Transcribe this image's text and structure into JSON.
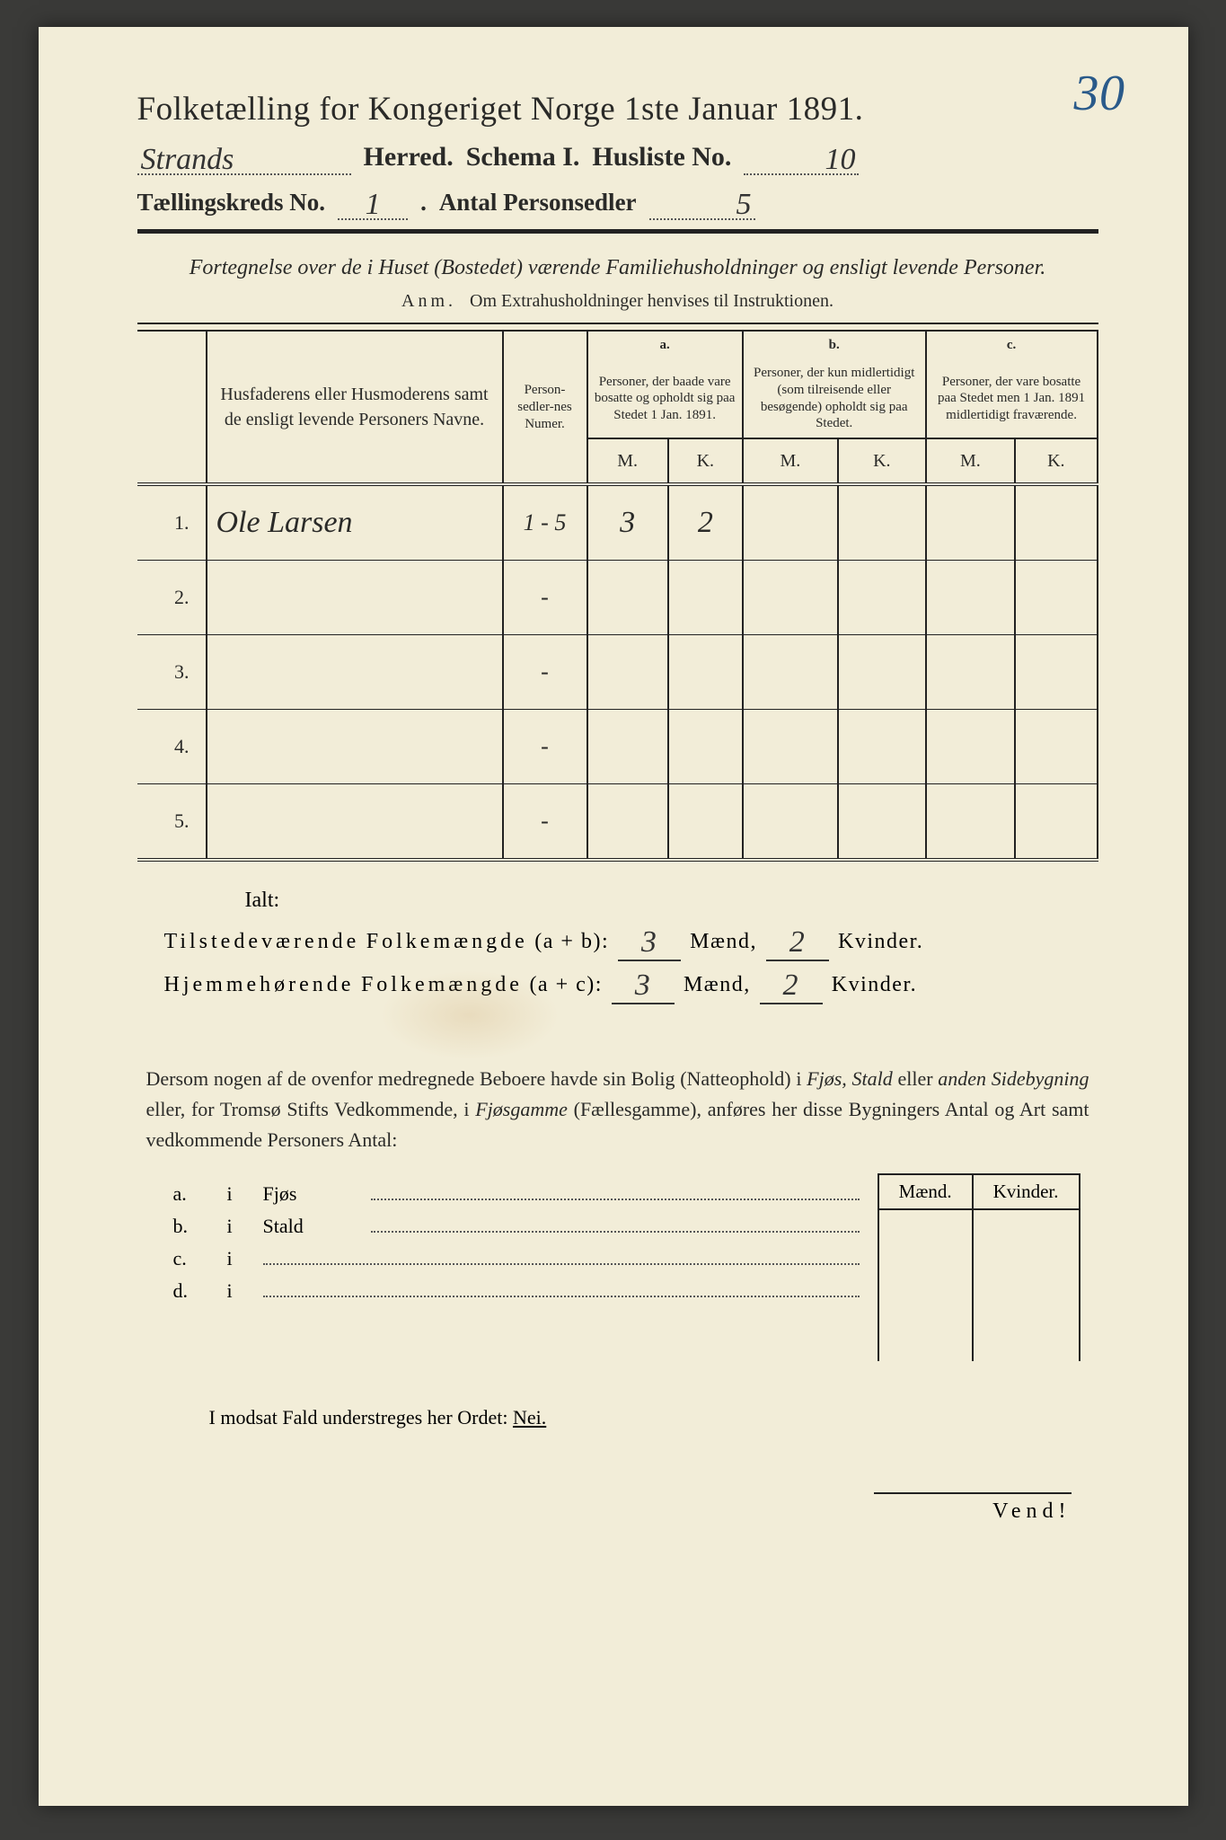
{
  "colors": {
    "paper": "#f2edd8",
    "ink": "#2a2a28",
    "pen_blue": "#2a5a8a",
    "background": "#3a3a38",
    "rule": "#222222",
    "dotted": "#555555"
  },
  "title": "Folketælling for Kongeriget Norge 1ste Januar 1891.",
  "page_annotation": "30",
  "line2": {
    "herred_value": "Strands",
    "herred_label": "Herred.",
    "schema_label": "Schema I.",
    "husliste_label": "Husliste No.",
    "husliste_value": "10"
  },
  "line3": {
    "kreds_label": "Tællingskreds No.",
    "kreds_value": "1",
    "antal_label": "Antal Personsedler",
    "antal_value": "5"
  },
  "subtitle": "Fortegnelse over de i Huset (Bostedet) værende Familiehusholdninger og ensligt levende Personer.",
  "anm_label": "Anm.",
  "anm_text": "Om Extrahusholdninger henvises til Instruktionen.",
  "table": {
    "col_names": "Husfaderens eller Husmoderens samt de ensligt levende Personers Navne.",
    "col_numer": "Person-sedler-nes Numer.",
    "col_a_head": "a.",
    "col_a": "Personer, der baade vare bosatte og opholdt sig paa Stedet 1 Jan. 1891.",
    "col_b_head": "b.",
    "col_b": "Personer, der kun midlertidigt (som tilreisende eller besøgende) opholdt sig paa Stedet.",
    "col_c_head": "c.",
    "col_c": "Personer, der vare bosatte paa Stedet men 1 Jan. 1891 midlertidigt fraværende.",
    "mk_m": "M.",
    "mk_k": "K.",
    "rows": [
      {
        "num": "1.",
        "name": "Ole Larsen",
        "sedler": "1 - 5",
        "a_m": "3",
        "a_k": "2",
        "b_m": "",
        "b_k": "",
        "c_m": "",
        "c_k": ""
      },
      {
        "num": "2.",
        "name": "",
        "sedler": "-",
        "a_m": "",
        "a_k": "",
        "b_m": "",
        "b_k": "",
        "c_m": "",
        "c_k": ""
      },
      {
        "num": "3.",
        "name": "",
        "sedler": "-",
        "a_m": "",
        "a_k": "",
        "b_m": "",
        "b_k": "",
        "c_m": "",
        "c_k": ""
      },
      {
        "num": "4.",
        "name": "",
        "sedler": "-",
        "a_m": "",
        "a_k": "",
        "b_m": "",
        "b_k": "",
        "c_m": "",
        "c_k": ""
      },
      {
        "num": "5.",
        "name": "",
        "sedler": "-",
        "a_m": "",
        "a_k": "",
        "b_m": "",
        "b_k": "",
        "c_m": "",
        "c_k": ""
      }
    ]
  },
  "ialt": "Ialt:",
  "sum1": {
    "label": "Tilstedeværende Folkemængde (a + b):",
    "m": "3",
    "m_label": "Mænd,",
    "k": "2",
    "k_label": "Kvinder."
  },
  "sum2": {
    "label": "Hjemmehørende Folkemængde (a + c):",
    "m": "3",
    "m_label": "Mænd,",
    "k": "2",
    "k_label": "Kvinder."
  },
  "para": "Dersom nogen af de ovenfor medregnede Beboere havde sin Bolig (Natteophold) i Fjøs, Stald eller anden Sidebygning eller, for Tromsø Stifts Vedkommende, i Fjøsgamme (Fællesgamme), anføres her disse Bygningers Antal og Art samt vedkommende Personers Antal:",
  "abcd": {
    "a": {
      "lab": "a.",
      "i": "i",
      "word": "Fjøs"
    },
    "b": {
      "lab": "b.",
      "i": "i",
      "word": "Stald"
    },
    "c": {
      "lab": "c.",
      "i": "i",
      "word": ""
    },
    "d": {
      "lab": "d.",
      "i": "i",
      "word": ""
    }
  },
  "mk_header": {
    "m": "Mænd.",
    "k": "Kvinder."
  },
  "nei_line_pre": "I modsat Fald understreges her Ordet:",
  "nei": "Nei.",
  "vend": "Vend!"
}
